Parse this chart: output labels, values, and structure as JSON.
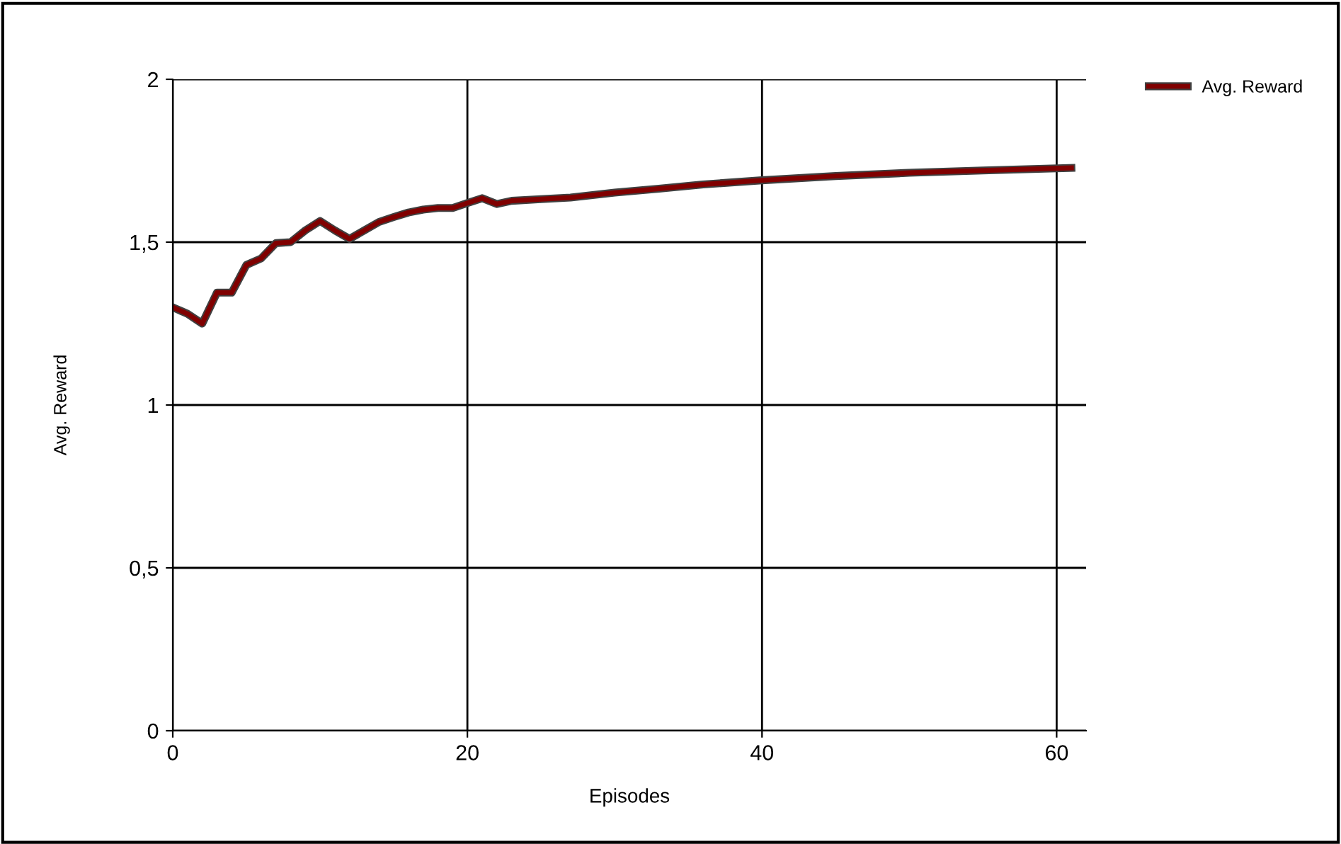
{
  "chart_data": {
    "type": "line",
    "xlabel": "Episodes",
    "ylabel": "Avg. Reward",
    "xlim": [
      0,
      62
    ],
    "xticks": [
      0,
      20,
      40,
      60
    ],
    "ylim": [
      0,
      2
    ],
    "yticks": [
      0,
      {
        "value": 0.5,
        "label": "0,5"
      },
      1,
      {
        "value": 1.5,
        "label": "1,5"
      },
      2
    ],
    "grid": true,
    "legend": "top right",
    "line_style": "solid",
    "series": [
      {
        "name": "Avg. Reward",
        "color": "#800000",
        "x": [
          0,
          1,
          2,
          3,
          4,
          5,
          6,
          7,
          8,
          9,
          10,
          11,
          12,
          13,
          14,
          15,
          16,
          17,
          18,
          19,
          20,
          21,
          22,
          23,
          25,
          27,
          30,
          33,
          36,
          40,
          45,
          50,
          55,
          61
        ],
        "values": [
          1.3,
          1.28,
          1.25,
          1.345,
          1.345,
          1.43,
          1.45,
          1.497,
          1.5,
          1.536,
          1.565,
          1.536,
          1.51,
          1.536,
          1.562,
          1.577,
          1.591,
          1.6,
          1.605,
          1.605,
          1.62,
          1.635,
          1.617,
          1.627,
          1.632,
          1.637,
          1.652,
          1.664,
          1.677,
          1.69,
          1.703,
          1.713,
          1.72,
          1.728
        ]
      }
    ]
  }
}
